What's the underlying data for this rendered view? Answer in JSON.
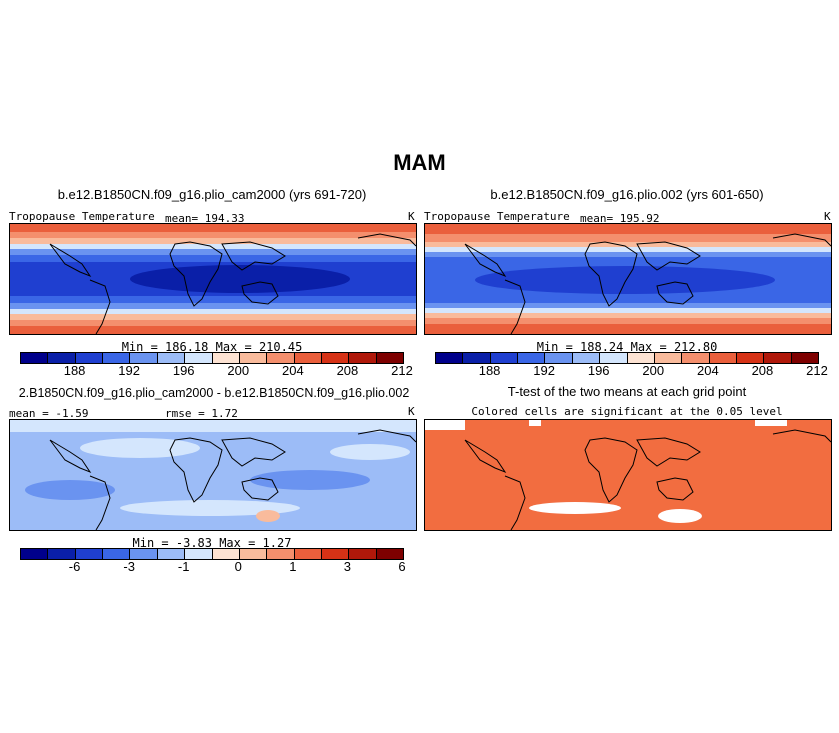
{
  "figure_title": "MAM",
  "chart_data": [
    {
      "type": "heatmap",
      "title": "b.e12.B1850CN.f09_g16.plio_cam2000 (yrs 691-720)",
      "variable": "Tropopause Temperature",
      "mean_label": "mean= 194.33",
      "units": "K",
      "min_max_label": "Min =  186.18  Max =  210.45",
      "min": 186.18,
      "max": 210.45,
      "colorbar_ticks": [
        "188",
        "192",
        "196",
        "200",
        "204",
        "208",
        "212"
      ]
    },
    {
      "type": "heatmap",
      "title": "b.e12.B1850CN.f09_g16.plio.002 (yrs 601-650)",
      "variable": "Tropopause Temperature",
      "mean_label": "mean= 195.92",
      "units": "K",
      "min_max_label": "Min =  188.24  Max =  212.80",
      "min": 188.24,
      "max": 212.8,
      "colorbar_ticks": [
        "188",
        "192",
        "196",
        "200",
        "204",
        "208",
        "212"
      ]
    },
    {
      "type": "heatmap",
      "title": "2.B1850CN.f09_g16.plio_cam2000 - b.e12.B1850CN.f09_g16.plio.002",
      "mean_label": "mean =  -1.59",
      "rmse_label": "rmse =   1.72",
      "units": "K",
      "min_max_label": "Min =  -3.83  Max =   1.27",
      "min": -3.83,
      "max": 1.27,
      "colorbar_ticks": [
        "-6",
        "-3",
        "-1",
        "0",
        "1",
        "3",
        "6"
      ]
    },
    {
      "type": "heatmap",
      "title": "T-test of the two means at each grid point",
      "subtitle": "Colored cells are significant at the 0.05 level"
    }
  ],
  "colors": {
    "abs_scale": [
      "#00008b",
      "#0a1fa8",
      "#1f3fd0",
      "#3a66e6",
      "#6a93f0",
      "#9cbcf7",
      "#d4e6fd",
      "#fde3d3",
      "#f9bb9c",
      "#f48f6d",
      "#ea5f3c",
      "#d63216",
      "#b0180a",
      "#7e0000"
    ],
    "diff_scale": [
      "#00008b",
      "#0a1fa8",
      "#1f3fd0",
      "#3a66e6",
      "#6a93f0",
      "#9cbcf7",
      "#d4e6fd",
      "#fde3d3",
      "#f9bb9c",
      "#f48f6d",
      "#ea5f3c",
      "#d63216",
      "#b0180a",
      "#7e0000"
    ],
    "ttest": "#f26d40"
  }
}
